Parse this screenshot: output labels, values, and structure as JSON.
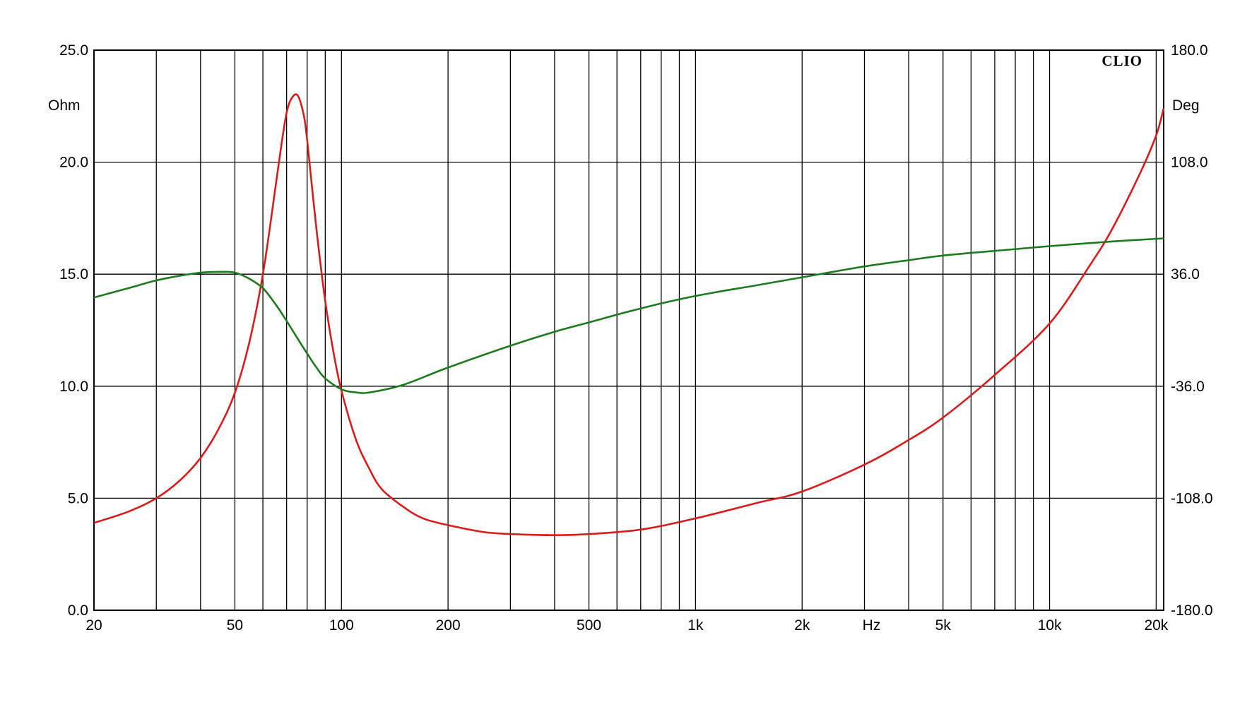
{
  "chart_data": {
    "type": "line",
    "brand": "CLIO",
    "x_scale": "log",
    "xlim": [
      20,
      21000
    ],
    "x_tick_labels": [
      {
        "value": 20,
        "label": "20"
      },
      {
        "value": 50,
        "label": "50"
      },
      {
        "value": 100,
        "label": "100"
      },
      {
        "value": 200,
        "label": "200"
      },
      {
        "value": 500,
        "label": "500"
      },
      {
        "value": 1000,
        "label": "1k"
      },
      {
        "value": 2000,
        "label": "2k"
      },
      {
        "value": 5000,
        "label": "5k"
      },
      {
        "value": 10000,
        "label": "10k"
      },
      {
        "value": 20000,
        "label": "20k"
      }
    ],
    "x_unit_label": {
      "value": 3000,
      "label": "Hz"
    },
    "x_gridlines": [
      20,
      30,
      40,
      50,
      60,
      70,
      80,
      90,
      100,
      200,
      300,
      400,
      500,
      600,
      700,
      800,
      900,
      1000,
      2000,
      3000,
      4000,
      5000,
      6000,
      7000,
      8000,
      9000,
      10000,
      20000
    ],
    "y_left": {
      "unit": "Ohm",
      "range": [
        0,
        25
      ],
      "ticks": [
        "0.0",
        "5.0",
        "10.0",
        "15.0",
        "20.0",
        "25.0"
      ]
    },
    "y_right": {
      "unit": "Deg",
      "range": [
        -180,
        180
      ],
      "ticks": [
        "-180.0",
        "-108.0",
        "-36.0",
        "36.0",
        "108.0",
        "180.0"
      ]
    },
    "grid": true,
    "series": [
      {
        "axis": "left",
        "color": "#d81c1c",
        "x": [
          20,
          25,
          30,
          35,
          40,
          45,
          50,
          55,
          60,
          65,
          68,
          70,
          72,
          75,
          78,
          80,
          85,
          90,
          95,
          100,
          110,
          120,
          130,
          150,
          170,
          200,
          250,
          300,
          400,
          500,
          700,
          1000,
          1500,
          2000,
          3000,
          4000,
          5000,
          7000,
          10000,
          13000,
          15000,
          18000,
          20000,
          21000
        ],
        "y": [
          3.9,
          4.4,
          5.0,
          5.8,
          6.8,
          8.1,
          9.7,
          12.0,
          15.0,
          18.8,
          21.0,
          22.2,
          22.8,
          23.0,
          22.2,
          21.0,
          17.0,
          13.8,
          11.5,
          9.8,
          7.6,
          6.3,
          5.4,
          4.6,
          4.1,
          3.8,
          3.5,
          3.4,
          3.35,
          3.4,
          3.6,
          4.1,
          4.8,
          5.3,
          6.5,
          7.6,
          8.6,
          10.5,
          12.8,
          15.4,
          17.0,
          19.5,
          21.2,
          22.4
        ]
      },
      {
        "axis": "right",
        "color": "#1e7a1e",
        "x": [
          20,
          25,
          30,
          35,
          40,
          45,
          50,
          55,
          60,
          65,
          70,
          75,
          80,
          85,
          90,
          100,
          110,
          120,
          150,
          200,
          300,
          400,
          500,
          700,
          1000,
          1500,
          2000,
          3000,
          4000,
          5000,
          7000,
          10000,
          15000,
          21000
        ],
        "y": [
          21,
          27,
          32,
          35,
          37,
          37.5,
          37,
          33,
          27,
          17,
          6,
          -5,
          -15,
          -24,
          -31,
          -38,
          -40,
          -40,
          -35,
          -24,
          -10,
          -1,
          5,
          14,
          22,
          29,
          34,
          41,
          45,
          48,
          51,
          54,
          57,
          59
        ]
      }
    ]
  }
}
